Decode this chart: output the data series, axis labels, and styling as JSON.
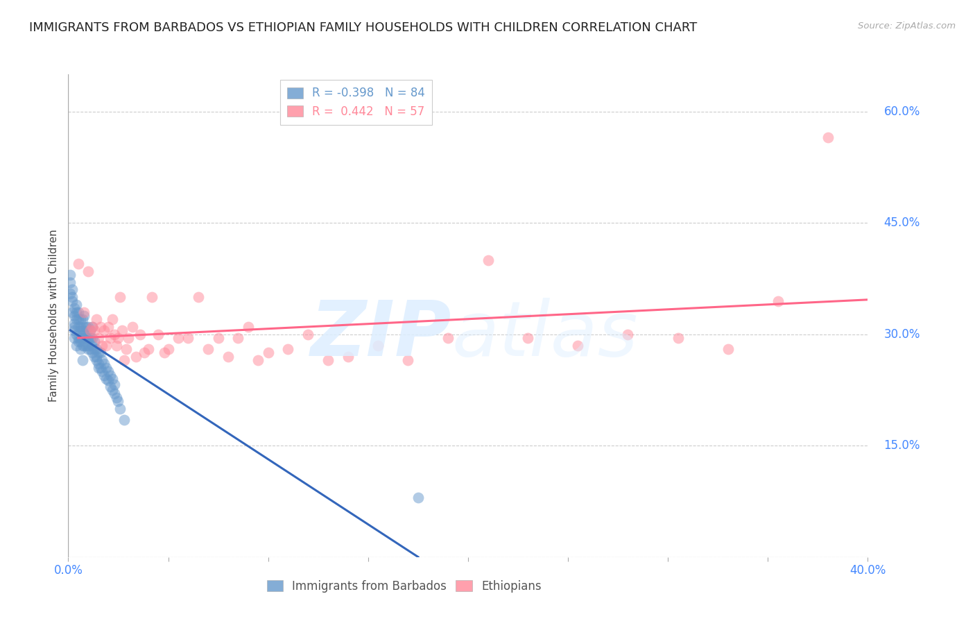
{
  "title": "IMMIGRANTS FROM BARBADOS VS ETHIOPIAN FAMILY HOUSEHOLDS WITH CHILDREN CORRELATION CHART",
  "source": "Source: ZipAtlas.com",
  "ylabel": "Family Households with Children",
  "yticks": [
    0.0,
    0.15,
    0.3,
    0.45,
    0.6
  ],
  "ytick_labels": [
    "",
    "15.0%",
    "30.0%",
    "45.0%",
    "60.0%"
  ],
  "xtick_vals": [
    0.0,
    0.05,
    0.1,
    0.15,
    0.2,
    0.25,
    0.3,
    0.35,
    0.4
  ],
  "xlim": [
    0.0,
    0.4
  ],
  "ylim": [
    0.0,
    0.65
  ],
  "legend_entries": [
    {
      "label": "R = -0.398   N = 84",
      "color": "#6699CC"
    },
    {
      "label": "R =  0.442   N = 57",
      "color": "#FF8899"
    }
  ],
  "scatter_blue_color": "#6699CC",
  "scatter_pink_color": "#FF8899",
  "line_blue_color": "#3366BB",
  "line_pink_color": "#FF6688",
  "background_color": "#FFFFFF",
  "blue_x": [
    0.001,
    0.001,
    0.001,
    0.002,
    0.002,
    0.002,
    0.002,
    0.003,
    0.003,
    0.003,
    0.003,
    0.003,
    0.003,
    0.004,
    0.004,
    0.004,
    0.004,
    0.004,
    0.005,
    0.005,
    0.005,
    0.005,
    0.005,
    0.006,
    0.006,
    0.006,
    0.006,
    0.006,
    0.006,
    0.007,
    0.007,
    0.007,
    0.007,
    0.007,
    0.008,
    0.008,
    0.008,
    0.008,
    0.008,
    0.009,
    0.009,
    0.009,
    0.009,
    0.01,
    0.01,
    0.01,
    0.01,
    0.011,
    0.011,
    0.011,
    0.012,
    0.012,
    0.012,
    0.012,
    0.013,
    0.013,
    0.013,
    0.014,
    0.014,
    0.014,
    0.015,
    0.015,
    0.015,
    0.016,
    0.016,
    0.017,
    0.017,
    0.018,
    0.018,
    0.019,
    0.019,
    0.02,
    0.02,
    0.021,
    0.021,
    0.022,
    0.022,
    0.023,
    0.023,
    0.024,
    0.025,
    0.026,
    0.028,
    0.175
  ],
  "blue_y": [
    0.355,
    0.37,
    0.38,
    0.345,
    0.36,
    0.33,
    0.35,
    0.31,
    0.325,
    0.335,
    0.315,
    0.295,
    0.305,
    0.34,
    0.32,
    0.3,
    0.33,
    0.285,
    0.33,
    0.31,
    0.29,
    0.32,
    0.295,
    0.295,
    0.31,
    0.305,
    0.29,
    0.32,
    0.28,
    0.305,
    0.295,
    0.32,
    0.285,
    0.265,
    0.3,
    0.285,
    0.31,
    0.295,
    0.325,
    0.3,
    0.285,
    0.31,
    0.295,
    0.285,
    0.295,
    0.31,
    0.28,
    0.295,
    0.28,
    0.305,
    0.285,
    0.295,
    0.275,
    0.31,
    0.28,
    0.29,
    0.27,
    0.28,
    0.27,
    0.265,
    0.26,
    0.275,
    0.255,
    0.255,
    0.275,
    0.25,
    0.265,
    0.245,
    0.26,
    0.24,
    0.255,
    0.238,
    0.25,
    0.23,
    0.245,
    0.225,
    0.24,
    0.22,
    0.232,
    0.215,
    0.21,
    0.2,
    0.185,
    0.08
  ],
  "pink_x": [
    0.005,
    0.008,
    0.01,
    0.011,
    0.012,
    0.013,
    0.014,
    0.015,
    0.016,
    0.017,
    0.018,
    0.019,
    0.02,
    0.021,
    0.022,
    0.023,
    0.024,
    0.025,
    0.026,
    0.027,
    0.028,
    0.029,
    0.03,
    0.032,
    0.034,
    0.036,
    0.038,
    0.04,
    0.042,
    0.045,
    0.048,
    0.05,
    0.055,
    0.06,
    0.065,
    0.07,
    0.075,
    0.08,
    0.085,
    0.09,
    0.095,
    0.1,
    0.11,
    0.12,
    0.13,
    0.14,
    0.155,
    0.17,
    0.19,
    0.21,
    0.23,
    0.255,
    0.28,
    0.305,
    0.33,
    0.355,
    0.38
  ],
  "pink_y": [
    0.395,
    0.33,
    0.385,
    0.305,
    0.31,
    0.305,
    0.32,
    0.295,
    0.31,
    0.285,
    0.305,
    0.285,
    0.31,
    0.295,
    0.32,
    0.3,
    0.285,
    0.295,
    0.35,
    0.305,
    0.265,
    0.28,
    0.295,
    0.31,
    0.27,
    0.3,
    0.275,
    0.28,
    0.35,
    0.3,
    0.275,
    0.28,
    0.295,
    0.295,
    0.35,
    0.28,
    0.295,
    0.27,
    0.295,
    0.31,
    0.265,
    0.275,
    0.28,
    0.3,
    0.265,
    0.27,
    0.285,
    0.265,
    0.295,
    0.4,
    0.295,
    0.285,
    0.3,
    0.295,
    0.28,
    0.345,
    0.565
  ],
  "blue_R": -0.398,
  "blue_N": 84,
  "pink_R": 0.442,
  "pink_N": 57,
  "grid_color": "#CCCCCC",
  "title_fontsize": 13,
  "axis_label_fontsize": 11,
  "tick_fontsize": 12,
  "legend_fontsize": 12,
  "tick_color": "#4488FF"
}
